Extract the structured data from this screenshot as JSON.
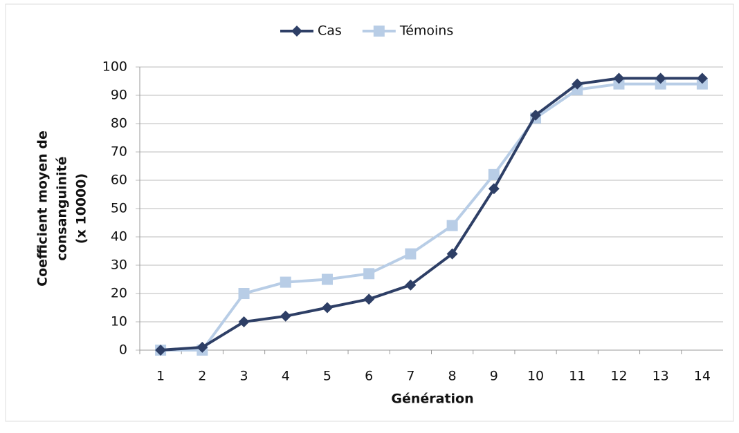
{
  "chart_data": {
    "type": "line",
    "xlabel": "Génération",
    "ylabel": [
      "Coefficient moyen de",
      "consanguinité",
      "(x 10000)"
    ],
    "categories": [
      "1",
      "2",
      "3",
      "4",
      "5",
      "6",
      "7",
      "8",
      "9",
      "10",
      "11",
      "12",
      "13",
      "14"
    ],
    "series": [
      {
        "name": "Cas",
        "color": "#2e3f66",
        "marker": "diamond",
        "values": [
          0,
          1,
          10,
          12,
          15,
          18,
          23,
          34,
          57,
          83,
          94,
          96,
          96,
          96
        ]
      },
      {
        "name": "Témoins",
        "color": "#b8cde6",
        "marker": "square",
        "values": [
          0,
          0,
          20,
          24,
          25,
          27,
          34,
          44,
          62,
          82,
          92,
          94,
          94,
          94
        ]
      }
    ],
    "ylim": [
      0,
      100
    ],
    "yticks": [
      0,
      10,
      20,
      30,
      40,
      50,
      60,
      70,
      80,
      90,
      100
    ],
    "grid": true,
    "legend": "top"
  }
}
